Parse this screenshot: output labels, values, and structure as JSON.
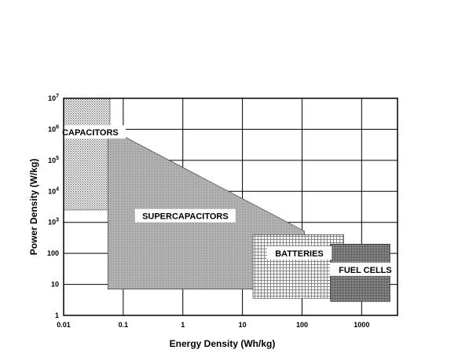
{
  "chart_data": {
    "type": "area",
    "title": "",
    "xlabel": "Energy Density (Wh/kg)",
    "ylabel": "Power Density (W/kg)",
    "xscale": "log",
    "yscale": "log",
    "xlim": [
      0.01,
      4000
    ],
    "ylim": [
      1,
      10000000
    ],
    "grid": true,
    "x_ticks": [
      {
        "value": 0.01,
        "label": "0.01"
      },
      {
        "value": 0.1,
        "label": "0.1"
      },
      {
        "value": 1,
        "label": "1"
      },
      {
        "value": 10,
        "label": "10"
      },
      {
        "value": 100,
        "label": "100"
      },
      {
        "value": 1000,
        "label": "1000"
      }
    ],
    "y_ticks": [
      {
        "value": 1,
        "base": "1",
        "exp": ""
      },
      {
        "value": 10,
        "base": "10",
        "exp": ""
      },
      {
        "value": 100,
        "base": "100",
        "exp": ""
      },
      {
        "value": 1000,
        "base": "10",
        "exp": "3"
      },
      {
        "value": 10000,
        "base": "10",
        "exp": "4"
      },
      {
        "value": 100000,
        "base": "10",
        "exp": "5"
      },
      {
        "value": 1000000,
        "base": "10",
        "exp": "6"
      },
      {
        "value": 10000000,
        "base": "10",
        "exp": "7"
      }
    ],
    "regions": [
      {
        "name": "CAPACITORS",
        "pattern": "dots",
        "points": [
          [
            0.01,
            10000000
          ],
          [
            0.06,
            10000000
          ],
          [
            0.06,
            2500
          ],
          [
            0.01,
            2500
          ]
        ],
        "label_at": [
          0.028,
          800000
        ]
      },
      {
        "name": "SUPERCAPACITORS",
        "pattern": "dense-dots",
        "points": [
          [
            0.055,
            1100000
          ],
          [
            110,
            520
          ],
          [
            110,
            7
          ],
          [
            0.055,
            7
          ]
        ],
        "label_at": [
          1.1,
          1600
        ]
      },
      {
        "name": "BATTERIES",
        "pattern": "grid",
        "points": [
          [
            15,
            400
          ],
          [
            500,
            400
          ],
          [
            500,
            3.5
          ],
          [
            15,
            3.5
          ]
        ],
        "label_at": [
          90,
          100
        ]
      },
      {
        "name": "FUEL CELLS",
        "pattern": "cross",
        "points": [
          [
            300,
            200
          ],
          [
            3000,
            200
          ],
          [
            3000,
            2.8
          ],
          [
            300,
            2.8
          ]
        ],
        "label_at": [
          1150,
          30
        ]
      }
    ]
  }
}
